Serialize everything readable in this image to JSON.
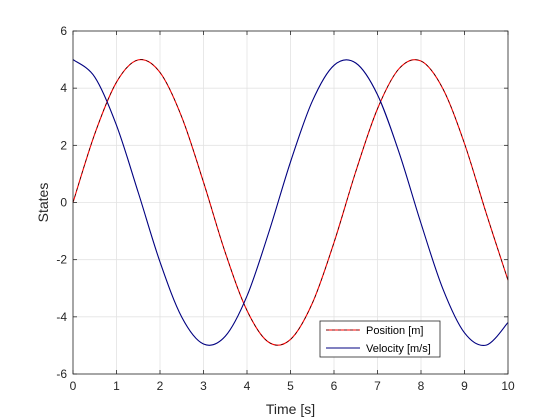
{
  "chart_data": {
    "type": "line",
    "title": "",
    "xlabel": "Time [s]",
    "ylabel": "States",
    "xlim": [
      0,
      10
    ],
    "ylim": [
      -6,
      6
    ],
    "xticks": [
      0,
      1,
      2,
      3,
      4,
      5,
      6,
      7,
      8,
      9,
      10
    ],
    "yticks": [
      -6,
      -4,
      -2,
      0,
      2,
      4,
      6
    ],
    "xtick_labels": [
      "0",
      "1",
      "2",
      "3",
      "4",
      "5",
      "6",
      "7",
      "8",
      "9",
      "10"
    ],
    "ytick_labels": [
      "-6",
      "-4",
      "-2",
      "0",
      "2",
      "4",
      "6"
    ],
    "grid": true,
    "legend": {
      "placement": "bottom-right"
    },
    "x": [
      0,
      0.5,
      1,
      1.5,
      2,
      2.5,
      3,
      3.5,
      4,
      4.5,
      5,
      5.5,
      6,
      6.5,
      7,
      7.5,
      8,
      8.5,
      9,
      9.5,
      10
    ],
    "series": [
      {
        "name": "Position [m]",
        "color": "#ff0000",
        "dash_color": "#000000",
        "values": [
          0,
          2.4,
          4.21,
          4.99,
          4.55,
          2.99,
          0.71,
          -1.75,
          -3.78,
          -4.89,
          -4.79,
          -3.53,
          -1.4,
          1.08,
          3.28,
          4.69,
          4.95,
          3.99,
          2.06,
          -0.38,
          -2.72
        ]
      },
      {
        "name": "Velocity [m/s]",
        "color": "#000080",
        "values": [
          5,
          4.39,
          2.7,
          0.35,
          -2.08,
          -4.01,
          -4.95,
          -4.68,
          -3.27,
          -1.05,
          1.42,
          3.54,
          4.8,
          4.88,
          3.77,
          1.73,
          -0.73,
          -3.01,
          -4.56,
          -4.99,
          -4.2
        ]
      }
    ]
  }
}
